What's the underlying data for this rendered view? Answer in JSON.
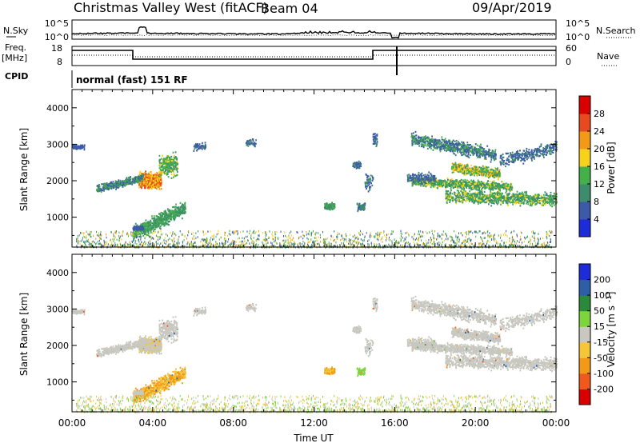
{
  "header": {
    "radar_title": "Christmas Valley West (fitACF)",
    "beam_label": "Beam 04",
    "date_label": "09/Apr/2019"
  },
  "summary_panels": {
    "nsky_label": "N.Sky",
    "nsky_ticks": [
      "10^5",
      "10^0"
    ],
    "nsearch_label": "N.Search",
    "nsearch_ticks": [
      "10^5",
      "10^0"
    ],
    "freq_label": "Freq.",
    "freq_unit": "[MHz]",
    "freq_ticks": [
      "18",
      "8"
    ],
    "nave_label": "Nave",
    "nave_ticks": [
      "60",
      "0"
    ],
    "cpid_label": "CPID",
    "cpid_value": "normal (fast) 151 RF"
  },
  "chart_data": [
    {
      "type": "heatmap",
      "name": "power",
      "ylabel": "Slant Range [km]",
      "xlabel": "",
      "x_range": [
        "00:00",
        "24:00"
      ],
      "y_range": [
        180,
        4500
      ],
      "y_ticks": [
        1000,
        2000,
        3000,
        4000
      ],
      "colorbar": {
        "label": "Power [dB]",
        "ticks": [
          "4",
          "8",
          "12",
          "16",
          "20",
          "24",
          "28"
        ],
        "colors": [
          "#1e2bd8",
          "#3d5aa8",
          "#3f8b6e",
          "#43b04a",
          "#f6d21c",
          "#f29a18",
          "#e64a1e",
          "#d90000"
        ]
      },
      "features": [
        {
          "t_start_h": 1.0,
          "t_end_h": 4.5,
          "range_km": [
            1800,
            2400
          ],
          "peak_db": 28
        },
        {
          "t_start_h": 3.2,
          "t_end_h": 5.6,
          "range_km": [
            700,
            1200
          ],
          "peak_db": 16
        },
        {
          "t_start_h": 16.7,
          "t_end_h": 24.0,
          "range_km": [
            1300,
            3200
          ],
          "peak_db": 20
        }
      ]
    },
    {
      "type": "heatmap",
      "name": "velocity",
      "ylabel": "Slant Range [km]",
      "xlabel": "Time UT",
      "x_ticks": [
        "00:00",
        "04:00",
        "08:00",
        "12:00",
        "16:00",
        "20:00",
        "00:00"
      ],
      "y_range": [
        180,
        4500
      ],
      "y_ticks": [
        1000,
        2000,
        3000,
        4000
      ],
      "colorbar": {
        "label": "Velocity [m s^-1]",
        "ticks": [
          "200",
          "100",
          "50",
          "15",
          "-15",
          "-50",
          "-100",
          "-200"
        ],
        "colors": [
          "#1e2bd8",
          "#2e5fa6",
          "#2b8a3a",
          "#7ed43d",
          "#c8c8c0",
          "#f5c53a",
          "#f29a18",
          "#ef5a1c",
          "#d90000"
        ]
      }
    }
  ],
  "colors": {
    "background": "#ffffff",
    "axis": "#000000"
  }
}
